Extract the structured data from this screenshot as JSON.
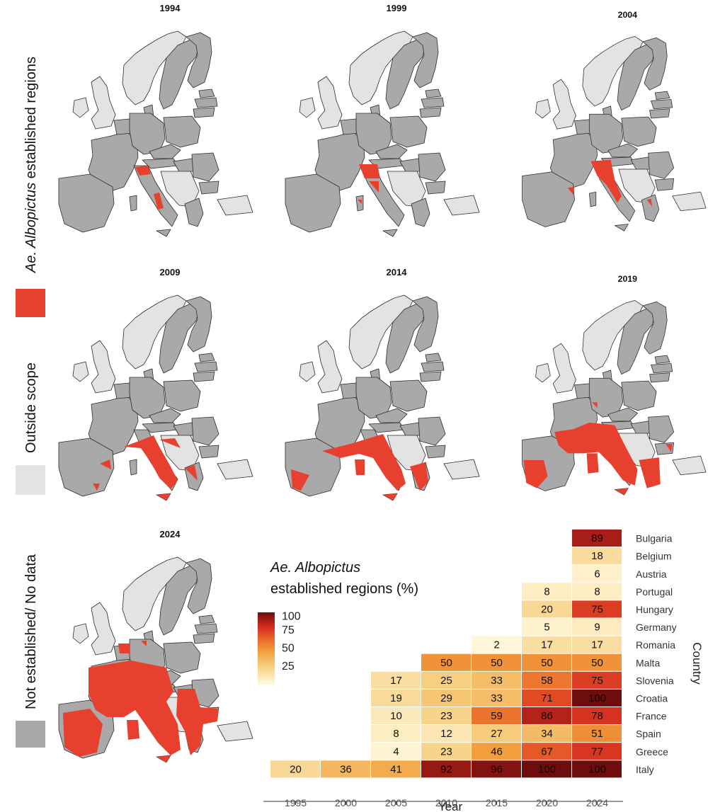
{
  "legend": {
    "established_label_italic": "Ae. Albopictus",
    "established_label_rest": " established regions",
    "outside_label": "Outside scope",
    "notest_label": "Not established/ No data",
    "colors": {
      "established": "#e8402f",
      "outside": "#e3e3e3",
      "not_established": "#a9a9a9"
    }
  },
  "maps": {
    "years": [
      "1994",
      "1999",
      "2004",
      "2009",
      "2014",
      "2019",
      "2024"
    ],
    "colors": {
      "land": "#a9a9a9",
      "outside": "#e3e3e3",
      "established": "#e8402f",
      "border": "#2b2b2b"
    }
  },
  "heatmap_title": {
    "italic": "Ae. Albopictus",
    "line2": "established regions (%)"
  },
  "chart_data": {
    "type": "heatmap",
    "xlabel": "Year",
    "ylabel": "Country",
    "x": [
      "1995",
      "2000",
      "2005",
      "2010",
      "2015",
      "2020",
      "2024"
    ],
    "rows": [
      "Bulgaria",
      "Belgium",
      "Austria",
      "Portugal",
      "Hungary",
      "Germany",
      "Romania",
      "Malta",
      "Slovenia",
      "Croatia",
      "France",
      "Spain",
      "Greece",
      "Italy"
    ],
    "values": [
      [
        null,
        null,
        null,
        null,
        null,
        null,
        89
      ],
      [
        null,
        null,
        null,
        null,
        null,
        null,
        18
      ],
      [
        null,
        null,
        null,
        null,
        null,
        null,
        6
      ],
      [
        null,
        null,
        null,
        null,
        null,
        8,
        8
      ],
      [
        null,
        null,
        null,
        null,
        null,
        20,
        75
      ],
      [
        null,
        null,
        null,
        null,
        null,
        5,
        9
      ],
      [
        null,
        null,
        null,
        null,
        2,
        17,
        17
      ],
      [
        null,
        null,
        null,
        50,
        50,
        50,
        50
      ],
      [
        null,
        null,
        17,
        25,
        33,
        58,
        75
      ],
      [
        null,
        null,
        19,
        29,
        33,
        71,
        100
      ],
      [
        null,
        null,
        10,
        23,
        59,
        86,
        78
      ],
      [
        null,
        null,
        8,
        12,
        27,
        34,
        51
      ],
      [
        null,
        null,
        4,
        23,
        46,
        67,
        77
      ],
      [
        20,
        36,
        41,
        92,
        96,
        100,
        100
      ]
    ],
    "colorbar": {
      "ticks": [
        "100",
        "75",
        "50",
        "25"
      ],
      "range": [
        0,
        100
      ]
    }
  }
}
